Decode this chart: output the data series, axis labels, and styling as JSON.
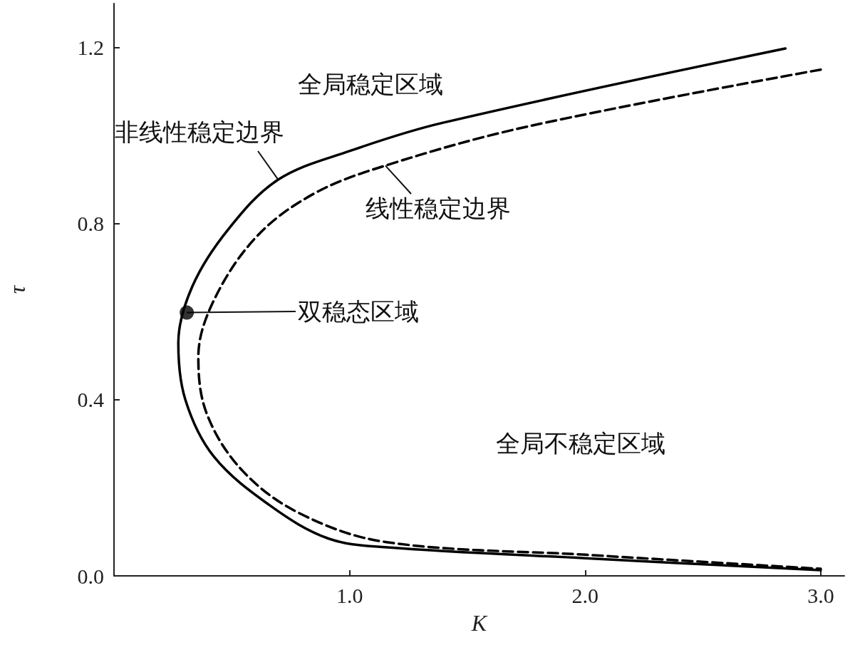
{
  "chart_data": {
    "type": "line",
    "xlabel": "K",
    "ylabel": "τ",
    "xlim": [
      0,
      3.1
    ],
    "ylim": [
      0,
      1.3
    ],
    "xticks": [
      {
        "value": 1,
        "label": "1.0"
      },
      {
        "value": 2,
        "label": "2.0"
      },
      {
        "value": 3,
        "label": "3.0"
      }
    ],
    "yticks": [
      {
        "value": 0,
        "label": "0.0"
      },
      {
        "value": 0.4,
        "label": "0.4"
      },
      {
        "value": 0.8,
        "label": "0.8"
      },
      {
        "value": 1.2,
        "label": "1.2"
      }
    ],
    "grid": false,
    "marker": "none",
    "series": [
      {
        "color": "#000000",
        "line_style": "solid",
        "x": [
          2.85,
          1.394,
          1.0,
          0.697,
          0.485,
          0.333,
          0.273,
          0.303,
          0.424,
          0.667,
          0.909,
          1.15,
          2.0,
          3.0
        ],
        "values": [
          1.198,
          1.029,
          0.965,
          0.9,
          0.787,
          0.658,
          0.529,
          0.4,
          0.271,
          0.158,
          0.085,
          0.065,
          0.04,
          0.013
        ]
      },
      {
        "color": "#000000",
        "line_style": "dashed",
        "x": [
          3.0,
          1.758,
          1.152,
          0.848,
          0.606,
          0.424,
          0.358,
          0.394,
          0.545,
          0.788,
          1.152,
          2.0,
          3.0
        ],
        "values": [
          1.15,
          1.021,
          0.932,
          0.868,
          0.771,
          0.626,
          0.497,
          0.368,
          0.239,
          0.142,
          0.077,
          0.048,
          0.016
        ]
      },
      {
        "type": "scatter",
        "marker": "circle",
        "color": "#000000",
        "x": [
          0.309
        ],
        "values": [
          0.598
        ]
      }
    ],
    "annotations": [
      "全局稳定区域",
      {
        "text": "非线性稳定边界",
        "x": 0.697,
        "y": 0.9
      },
      {
        "text": "线性稳定边界",
        "x": 1.152,
        "y": 0.932
      },
      {
        "text": "双稳态区域",
        "x": 0.309,
        "y": 0.598
      },
      "全局不稳定区域"
    ]
  }
}
